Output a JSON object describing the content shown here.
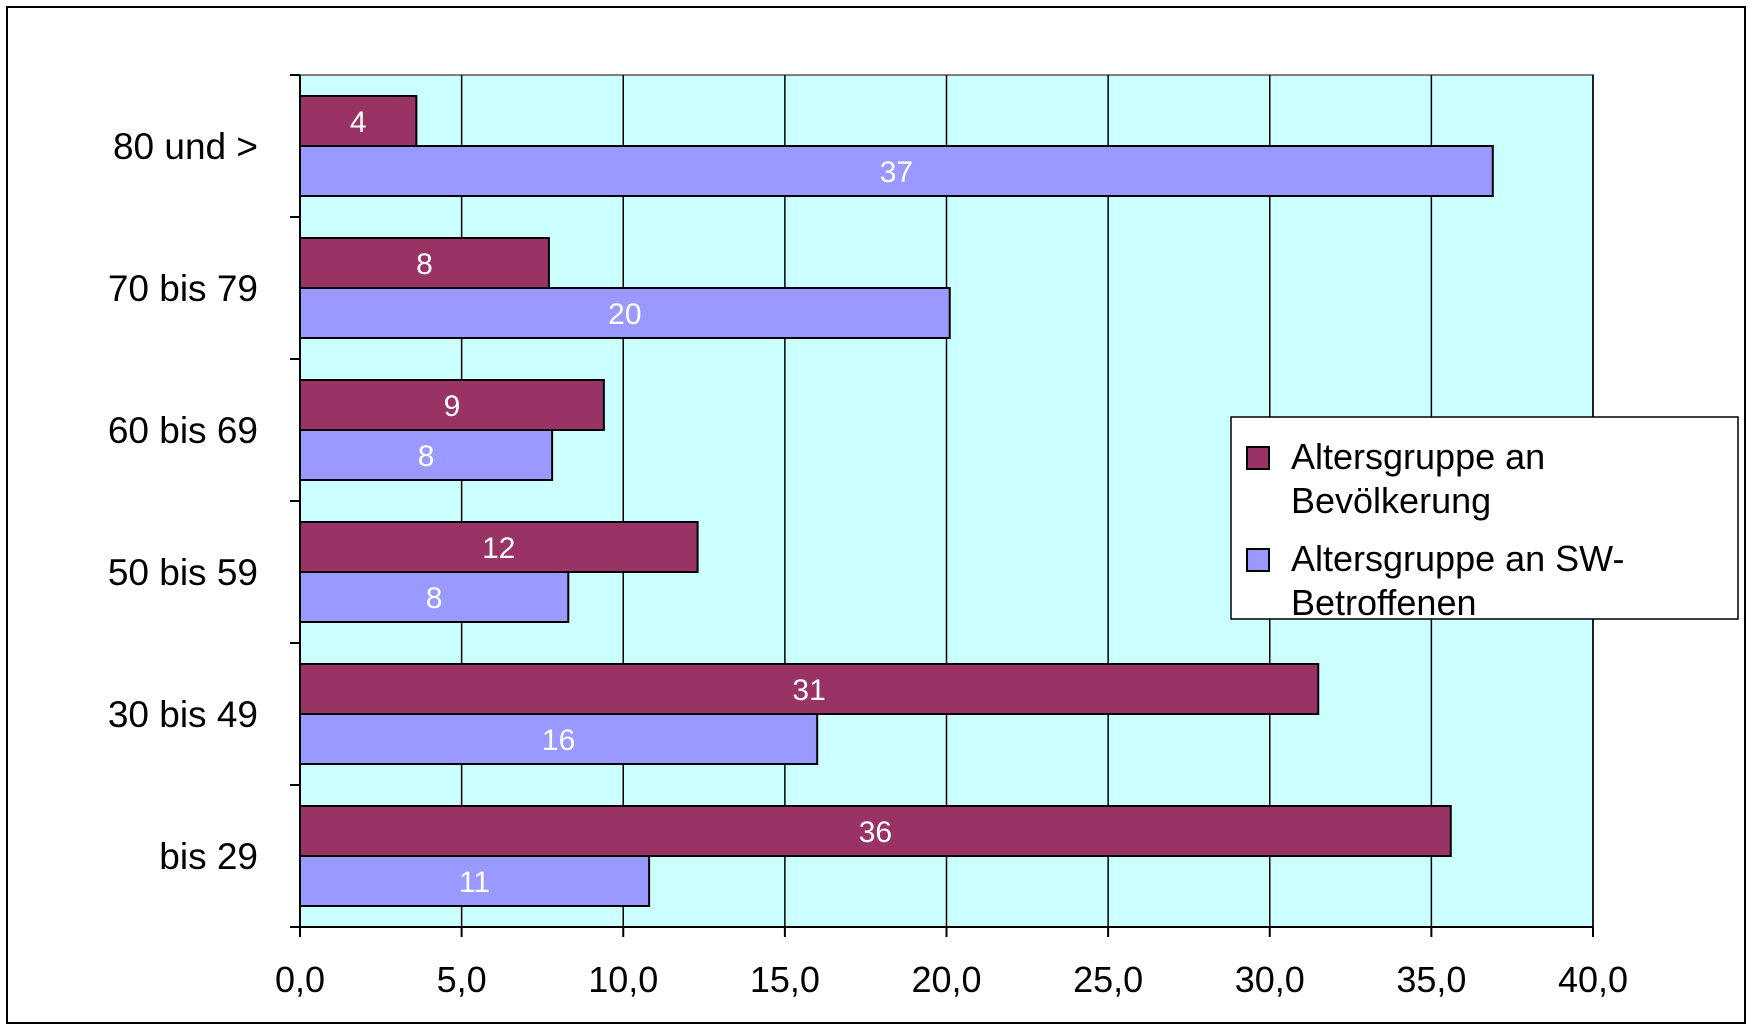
{
  "chart_data": {
    "type": "bar",
    "orientation": "horizontal",
    "title": "",
    "xlabel": "",
    "ylabel": "",
    "categories": [
      "80 und >",
      "70 bis 79",
      "60 bis 69",
      "50 bis 59",
      "30 bis 49",
      "bis 29"
    ],
    "series": [
      {
        "name": "Altersgruppe an Bevölkerung",
        "legend_lines": [
          "Altersgruppe an",
          "Bevölkerung"
        ],
        "color": "#993366",
        "values": [
          3.6,
          7.7,
          9.4,
          12.3,
          31.5,
          35.6
        ],
        "labels": [
          "4",
          "8",
          "9",
          "12",
          "31",
          "36"
        ]
      },
      {
        "name": "Altersgruppe an SW-Betroffenen",
        "legend_lines": [
          "Altersgruppe an SW-",
          "Betroffenen"
        ],
        "color": "#9999ff",
        "values": [
          36.9,
          20.1,
          7.8,
          8.3,
          16.0,
          10.8
        ],
        "labels": [
          "37",
          "20",
          "8",
          "8",
          "16",
          "11"
        ]
      }
    ],
    "xlim": [
      0,
      40
    ],
    "x_ticks": [
      0,
      5,
      10,
      15,
      20,
      25,
      30,
      35,
      40
    ],
    "x_tick_labels": [
      "0,0",
      "5,0",
      "10,0",
      "15,0",
      "20,0",
      "25,0",
      "30,0",
      "35,0",
      "40,0"
    ],
    "grid": true,
    "plot_background": "#ccffff",
    "legend_position": "right"
  }
}
